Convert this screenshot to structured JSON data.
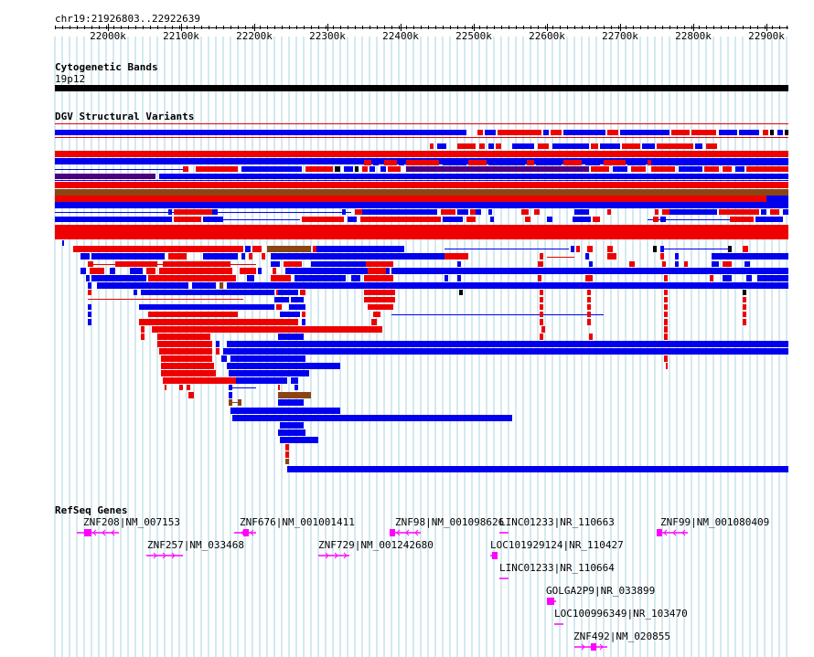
{
  "ruler": {
    "location": "chr19:21926803..22922639",
    "ticks": [
      "22000k",
      "22100k",
      "22200k",
      "22300k",
      "22400k",
      "22500k",
      "22600k",
      "22700k",
      "22800k",
      "22900k"
    ]
  },
  "cyto": {
    "title": "Cytogenetic Bands",
    "band": "19p12"
  },
  "dgv": {
    "title": "DGV Structural Variants"
  },
  "refseq": {
    "title": "RefSeq Genes",
    "genes": [
      {
        "label": "ZNF208|NM_007153"
      },
      {
        "label": "ZNF676|NM_001001411"
      },
      {
        "label": "ZNF98|NM_001098626"
      },
      {
        "label": "LINC01233|NR_110663"
      },
      {
        "label": "ZNF99|NM_001080409"
      },
      {
        "label": "ZNF257|NM_033468"
      },
      {
        "label": "ZNF729|NM_001242680"
      },
      {
        "label": "LOC101929124|NR_110427"
      },
      {
        "label": "LINC01233|NR_110664"
      },
      {
        "label": "GOLGA2P9|NR_033899"
      },
      {
        "label": "LOC100996349|NR_103470"
      },
      {
        "label": "ZNF492|NM_020855"
      }
    ]
  },
  "colors": {
    "gain": "#0000ee",
    "loss": "#ee0000",
    "both": "#8b4513",
    "inversion": "#4b0082",
    "gene": "#ff00ff",
    "grid": "#a9d3e0"
  }
}
